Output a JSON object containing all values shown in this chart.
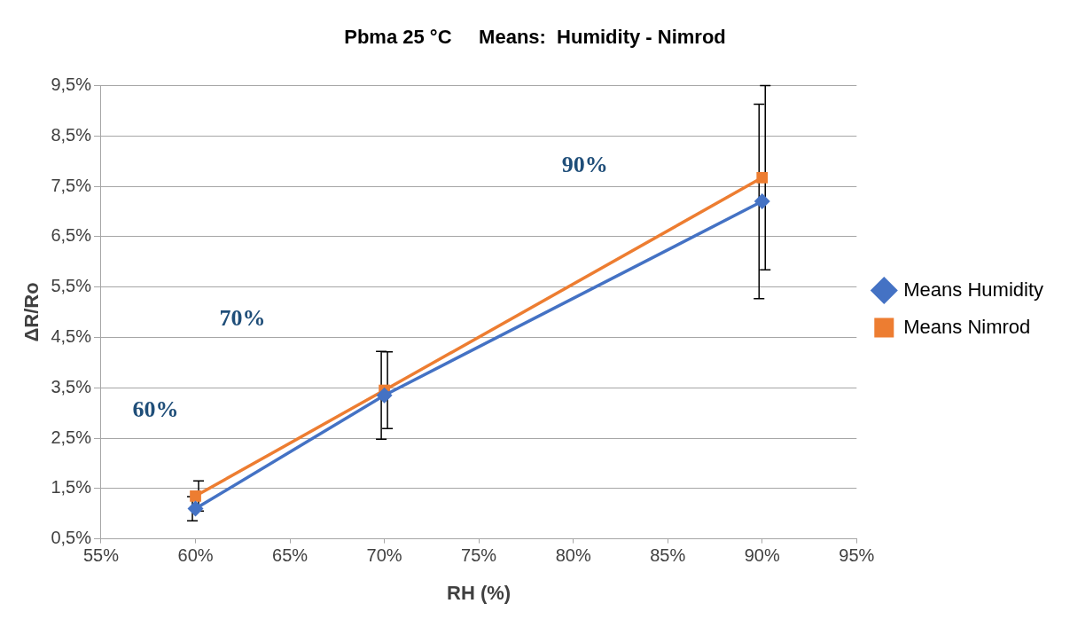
{
  "chart_data": {
    "type": "line",
    "title": "Pbma 25 °C     Means:  Humidity - Nimrod",
    "xlabel": "RH (%)",
    "ylabel": "ΔR/Ro",
    "x": [
      60,
      70,
      90
    ],
    "series": [
      {
        "name": "Means Humidity",
        "color": "#4472c4",
        "marker": "diamond",
        "values": [
          1.1,
          3.35,
          7.2
        ],
        "errors": [
          0.24,
          0.87,
          1.93
        ]
      },
      {
        "name": "Means Nimrod",
        "color": "#ed7d31",
        "marker": "square",
        "values": [
          1.35,
          3.45,
          7.67
        ],
        "errors": [
          0.3,
          0.76,
          1.83
        ]
      }
    ],
    "xlim": [
      55,
      95
    ],
    "xticks": [
      {
        "value": 55,
        "label": "55%"
      },
      {
        "value": 60,
        "label": "60%"
      },
      {
        "value": 65,
        "label": "65%"
      },
      {
        "value": 70,
        "label": "70%"
      },
      {
        "value": 75,
        "label": "75%"
      },
      {
        "value": 80,
        "label": "80%"
      },
      {
        "value": 85,
        "label": "85%"
      },
      {
        "value": 90,
        "label": "90%"
      },
      {
        "value": 95,
        "label": "95%"
      }
    ],
    "ylim": [
      0.5,
      9.5
    ],
    "yticks": [
      {
        "value": 0.5,
        "label": "0,5%"
      },
      {
        "value": 1.5,
        "label": "1,5%"
      },
      {
        "value": 2.5,
        "label": "2,5%"
      },
      {
        "value": 3.5,
        "label": "3,5%"
      },
      {
        "value": 4.5,
        "label": "4,5%"
      },
      {
        "value": 5.5,
        "label": "5,5%"
      },
      {
        "value": 6.5,
        "label": "6,5%"
      },
      {
        "value": 7.5,
        "label": "7,5%"
      },
      {
        "value": 8.5,
        "label": "8,5%"
      },
      {
        "value": 9.5,
        "label": "9,5%"
      }
    ],
    "annotations": [
      "60%",
      "70%",
      "90%"
    ],
    "grid": "y",
    "legend": "right",
    "line_style": "solid"
  }
}
